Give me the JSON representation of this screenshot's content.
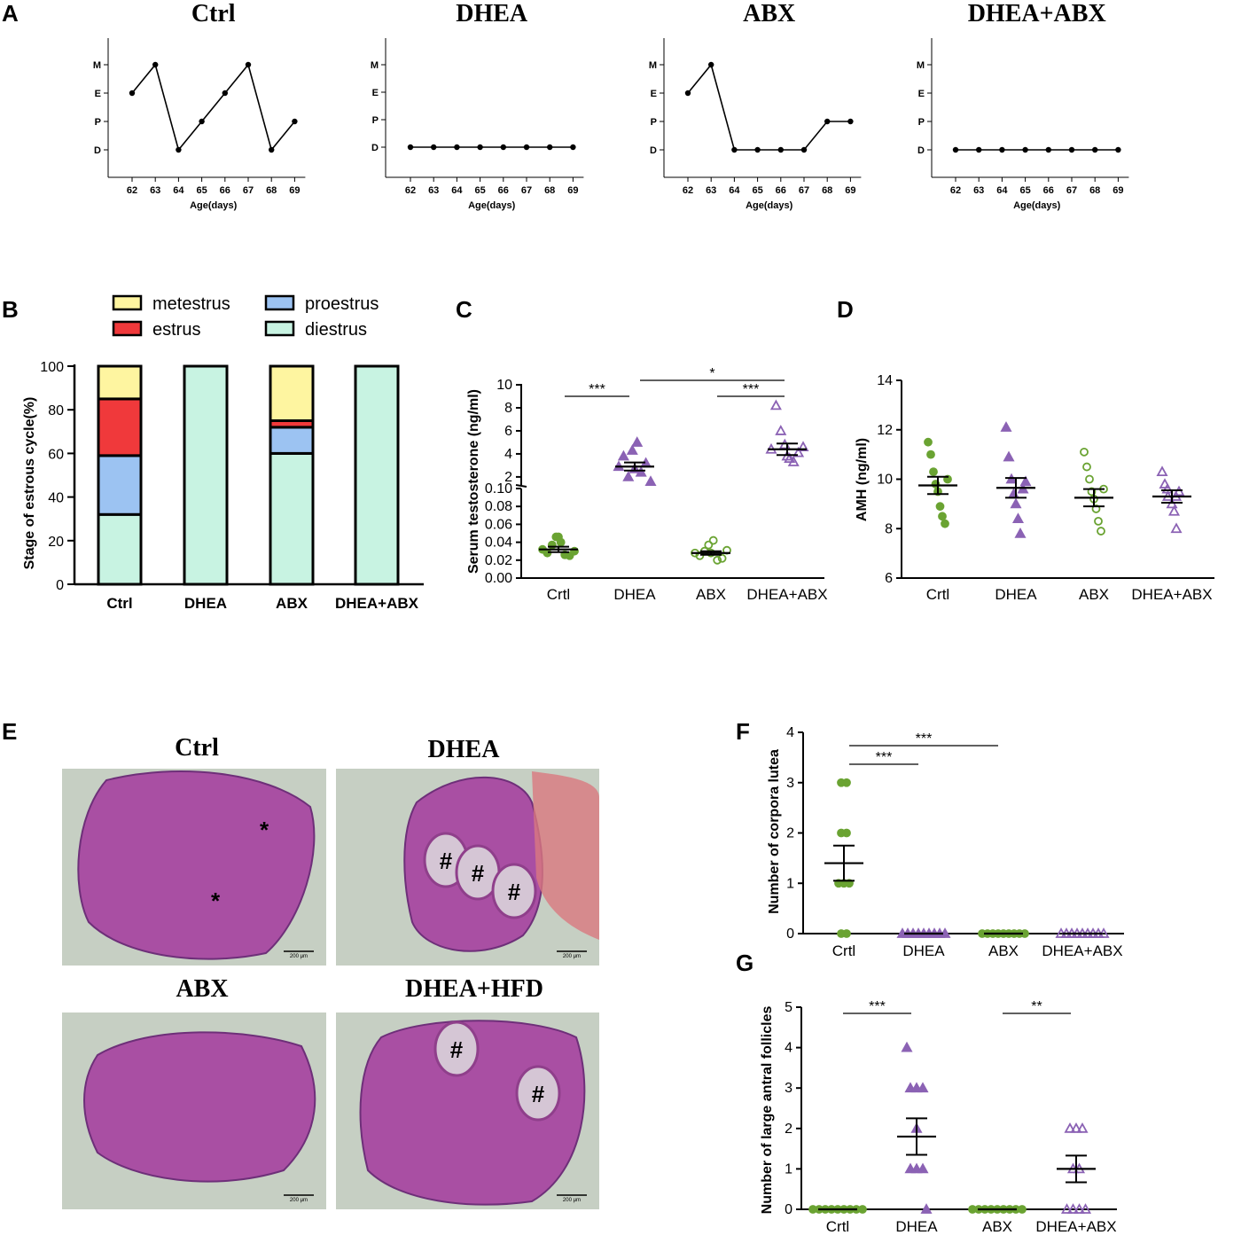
{
  "panel_labels": [
    "A",
    "B",
    "C",
    "D",
    "E",
    "F",
    "G"
  ],
  "colors": {
    "green": "#6aa332",
    "purple": "#8b62b4",
    "metestrus": "#fef5a0",
    "estrus": "#f0393b",
    "proestrus": "#9cc3f2",
    "diestrus": "#c8f3e2"
  },
  "chart_data": [
    {
      "id": "A",
      "type": "line",
      "xlabel": "Age(days)",
      "ytick_labels": [
        "D",
        "P",
        "E",
        "M"
      ],
      "x": [
        62,
        63,
        64,
        65,
        66,
        67,
        68,
        69
      ],
      "panels": [
        {
          "title": "Ctrl",
          "values": [
            2,
            3,
            0,
            1,
            2,
            3,
            0,
            1
          ]
        },
        {
          "title": "DHEA",
          "values": [
            0,
            0,
            0,
            0,
            0,
            0,
            0,
            0
          ]
        },
        {
          "title": "ABX",
          "values": [
            2,
            3,
            0,
            0,
            0,
            0,
            1,
            1
          ]
        },
        {
          "title": "DHEA+ABX",
          "values": [
            0,
            0,
            0,
            0,
            0,
            0,
            0,
            0
          ]
        }
      ]
    },
    {
      "id": "B",
      "type": "bar",
      "stacked": true,
      "ylabel": "Stage of estrous cycle(%)",
      "ylim": [
        0,
        100
      ],
      "yticks": [
        0,
        20,
        40,
        60,
        80,
        100
      ],
      "categories": [
        "Ctrl",
        "DHEA",
        "ABX",
        "DHEA+ABX"
      ],
      "legend": [
        "metestrus",
        "proestrus",
        "estrus",
        "diestrus"
      ],
      "series": [
        {
          "name": "diestrus",
          "values": [
            32,
            100,
            60,
            100
          ]
        },
        {
          "name": "proestrus",
          "values": [
            27,
            0,
            12,
            0
          ]
        },
        {
          "name": "estrus",
          "values": [
            26,
            0,
            3,
            0
          ]
        },
        {
          "name": "metestrus",
          "values": [
            15,
            0,
            25,
            0
          ]
        }
      ]
    },
    {
      "id": "C",
      "type": "scatter",
      "ylabel": "Serum testosterone (ng/ml)",
      "categories": [
        "Crtl",
        "DHEA",
        "ABX",
        "DHEA+ABX"
      ],
      "yticks_low": [
        "0.00",
        "0.02",
        "0.04",
        "0.06",
        "0.08",
        "0.10"
      ],
      "yticks_high": [
        "2",
        "4",
        "6",
        "8",
        "10"
      ],
      "points": [
        [
          0.032,
          0.028,
          0.037,
          0.046,
          0.04,
          0.026,
          0.025,
          0.03,
          0.046
        ],
        [
          2.9,
          3.8,
          2.0,
          4.3,
          5.0,
          2.4,
          3.2,
          1.6,
          2.7
        ],
        [
          0.028,
          0.025,
          0.03,
          0.037,
          0.042,
          0.02,
          0.022,
          0.031,
          0.028
        ],
        [
          4.4,
          8.2,
          6.0,
          4.8,
          3.6,
          3.3,
          4.1,
          4.6,
          3.8
        ]
      ],
      "means": [
        0.032,
        2.9,
        0.028,
        4.4
      ],
      "sems": [
        0.003,
        0.35,
        0.002,
        0.5
      ],
      "significance": [
        {
          "from": 0,
          "to": 1,
          "label": "***"
        },
        {
          "from": 1,
          "to": 3,
          "label": "*"
        },
        {
          "from": 2,
          "to": 3,
          "label": "***"
        }
      ]
    },
    {
      "id": "D",
      "type": "scatter",
      "ylabel": "AMH (ng/ml)",
      "ylim": [
        6,
        14
      ],
      "yticks": [
        6,
        8,
        10,
        12,
        14
      ],
      "categories": [
        "Crtl",
        "DHEA",
        "ABX",
        "DHEA+ABX"
      ],
      "points": [
        [
          11.5,
          11.0,
          10.3,
          9.8,
          9.5,
          8.9,
          8.5,
          8.2,
          10.0
        ],
        [
          12.1,
          10.9,
          10.0,
          9.4,
          9.0,
          8.4,
          7.8,
          9.6,
          9.9
        ],
        [
          11.1,
          10.5,
          10.0,
          9.5,
          9.2,
          8.8,
          8.3,
          7.9,
          9.6
        ],
        [
          10.3,
          9.8,
          9.6,
          9.3,
          9.0,
          8.7,
          8.0,
          9.5,
          9.3
        ]
      ],
      "means": [
        9.75,
        9.65,
        9.25,
        9.3
      ],
      "sems": [
        0.35,
        0.4,
        0.35,
        0.25
      ]
    },
    {
      "id": "F",
      "type": "scatter",
      "ylabel": "Number of corpora lutea",
      "ylim": [
        0,
        4
      ],
      "yticks": [
        0,
        1,
        2,
        3,
        4
      ],
      "categories": [
        "Crtl",
        "DHEA",
        "ABX",
        "DHEA+ABX"
      ],
      "points": [
        [
          3,
          3,
          2,
          2,
          1,
          1,
          1,
          0,
          0
        ],
        [
          0,
          0,
          0,
          0,
          0,
          0,
          0,
          0,
          0
        ],
        [
          0,
          0,
          0,
          0,
          0,
          0,
          0,
          0,
          0
        ],
        [
          0,
          0,
          0,
          0,
          0,
          0,
          0,
          0,
          0
        ]
      ],
      "means": [
        1.4,
        0,
        0,
        0
      ],
      "sems": [
        0.35,
        0,
        0,
        0
      ],
      "significance": [
        {
          "from": 0,
          "to": 1,
          "label": "***"
        },
        {
          "from": 0,
          "to": 2,
          "label": "***"
        }
      ]
    },
    {
      "id": "G",
      "type": "scatter",
      "ylabel": "Number of large antral follicles",
      "ylim": [
        0,
        5
      ],
      "yticks": [
        0,
        1,
        2,
        3,
        4,
        5
      ],
      "categories": [
        "Crtl",
        "DHEA",
        "ABX",
        "DHEA+ABX"
      ],
      "points": [
        [
          0,
          0,
          0,
          0,
          0,
          0,
          0,
          0,
          0
        ],
        [
          4,
          3,
          3,
          3,
          2,
          1,
          1,
          1,
          0
        ],
        [
          0,
          0,
          0,
          0,
          0,
          0,
          0,
          0,
          0
        ],
        [
          2,
          2,
          2,
          1,
          1,
          0,
          0,
          0,
          0
        ]
      ],
      "means": [
        0,
        1.8,
        0,
        1.0
      ],
      "sems": [
        0,
        0.45,
        0,
        0.33
      ],
      "significance": [
        {
          "from": 0,
          "to": 1,
          "label": "***"
        },
        {
          "from": 2,
          "to": 3,
          "label": "**"
        }
      ]
    }
  ],
  "histology": {
    "panels": [
      {
        "title": "Ctrl",
        "marks": [
          "*",
          "*"
        ],
        "scale": "200 μm"
      },
      {
        "title": "DHEA",
        "marks": [
          "#",
          "#",
          "#"
        ],
        "scale": "200 μm"
      },
      {
        "title": "ABX",
        "marks": [],
        "scale": "200 μm"
      },
      {
        "title": "DHEA+HFD",
        "marks": [
          "#",
          "#"
        ],
        "scale": "200 μm"
      }
    ]
  }
}
